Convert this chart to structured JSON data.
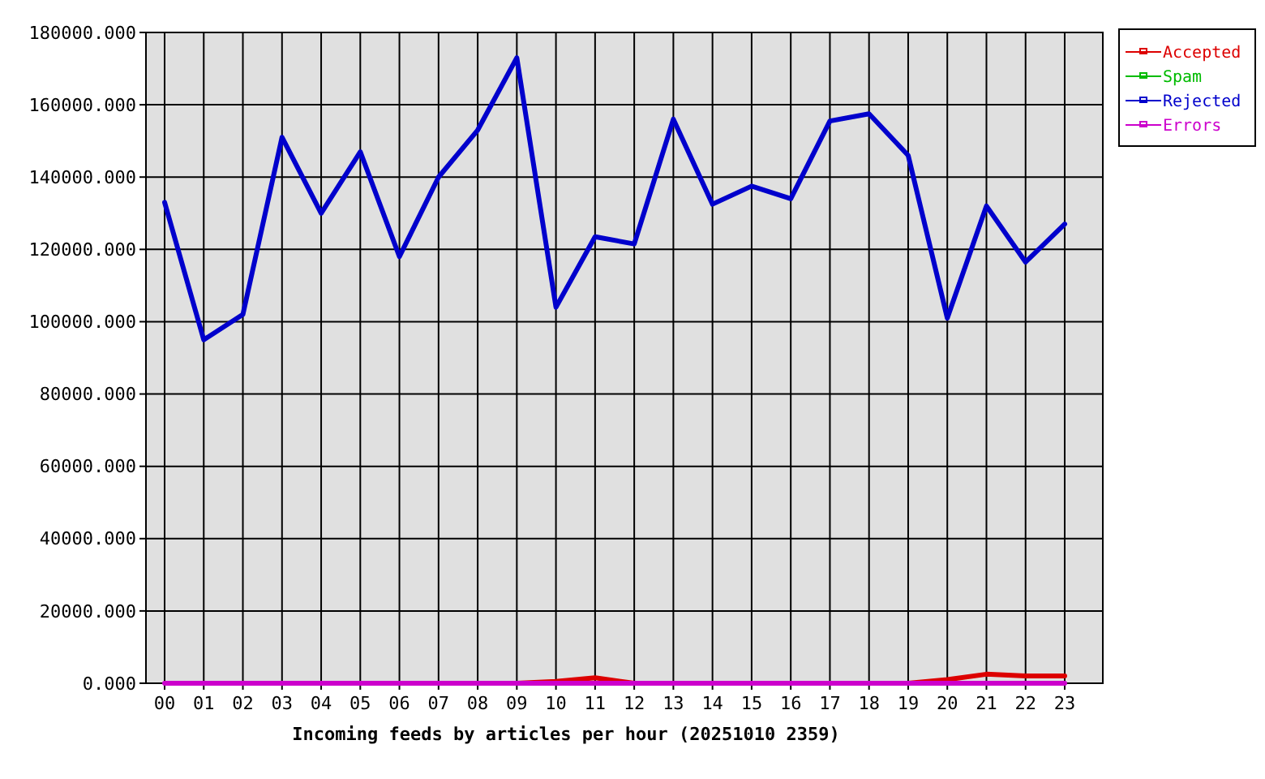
{
  "chart_data": {
    "type": "line",
    "xlabel": "Incoming feeds by articles per hour (20251010 2359)",
    "categories": [
      "00",
      "01",
      "02",
      "03",
      "04",
      "05",
      "06",
      "07",
      "08",
      "09",
      "10",
      "11",
      "12",
      "13",
      "14",
      "15",
      "16",
      "17",
      "18",
      "19",
      "20",
      "21",
      "22",
      "23"
    ],
    "ylim": [
      0,
      180000
    ],
    "yticks": [
      {
        "value": 0,
        "label": "0.000"
      },
      {
        "value": 20000,
        "label": "20000.000"
      },
      {
        "value": 40000,
        "label": "40000.000"
      },
      {
        "value": 60000,
        "label": "60000.000"
      },
      {
        "value": 80000,
        "label": "80000.000"
      },
      {
        "value": 100000,
        "label": "100000.000"
      },
      {
        "value": 120000,
        "label": "120000.000"
      },
      {
        "value": 140000,
        "label": "140000.000"
      },
      {
        "value": 160000,
        "label": "160000.000"
      },
      {
        "value": 180000,
        "label": "180000.000"
      }
    ],
    "grid": true,
    "legend": "top right",
    "series": [
      {
        "name": "Accepted",
        "color": "#dd0000",
        "values": [
          null,
          null,
          null,
          null,
          null,
          null,
          null,
          null,
          null,
          0,
          500,
          1500,
          0,
          null,
          null,
          null,
          null,
          null,
          null,
          0,
          1000,
          2500,
          2000,
          2000
        ]
      },
      {
        "name": "Spam",
        "color": "#00bb00",
        "values": [
          null,
          null,
          null,
          null,
          null,
          null,
          null,
          null,
          null,
          null,
          null,
          null,
          null,
          null,
          null,
          null,
          null,
          null,
          null,
          null,
          null,
          null,
          null,
          null
        ]
      },
      {
        "name": "Rejected",
        "color": "#0000cc",
        "values": [
          133000,
          95000,
          102000,
          151000,
          130000,
          147000,
          118000,
          140000,
          153000,
          173000,
          104000,
          123500,
          121500,
          156000,
          132500,
          137500,
          134000,
          155500,
          157500,
          146000,
          101000,
          132000,
          116500,
          127000
        ]
      },
      {
        "name": "Errors",
        "color": "#cc00cc",
        "values": [
          0,
          0,
          0,
          0,
          0,
          0,
          0,
          0,
          0,
          0,
          0,
          0,
          0,
          0,
          0,
          0,
          0,
          0,
          0,
          0,
          0,
          0,
          0,
          0
        ]
      }
    ]
  }
}
